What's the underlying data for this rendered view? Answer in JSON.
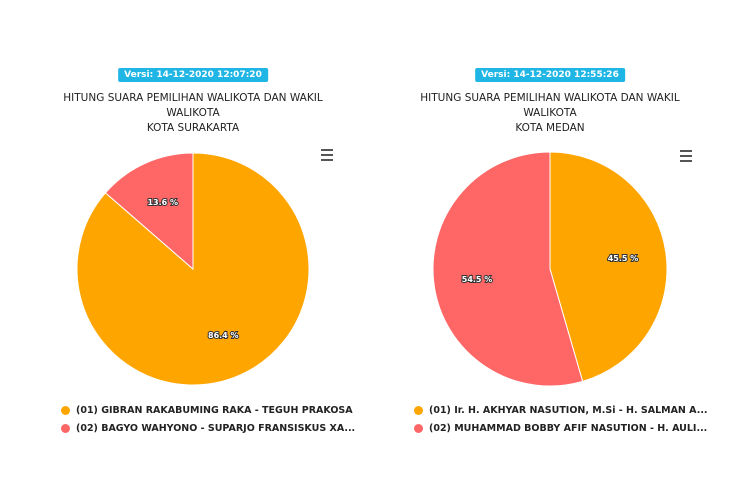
{
  "chart_data": [
    {
      "type": "pie",
      "badge": "Versi: 14-12-2020 12:07:20",
      "title": "HITUNG SUARA PEMILIHAN WALIKOTA DAN WAKIL WALIKOTA",
      "subtitle": "KOTA SURAKARTA",
      "categories": [
        "(01) GIBRAN RAKABUMING RAKA - TEGUH PRAKOSA",
        "(02) BAGYO WAHYONO - SUPARJO FRANSISKUS XA..."
      ],
      "values": [
        86.4,
        13.6
      ],
      "value_labels": [
        "86.4 %",
        "13.6 %"
      ],
      "colors": [
        "#ffa500",
        "#ff6666"
      ]
    },
    {
      "type": "pie",
      "badge": "Versi: 14-12-2020 12:55:26",
      "title": "HITUNG SUARA PEMILIHAN WALIKOTA DAN WAKIL WALIKOTA",
      "subtitle": "KOTA MEDAN",
      "categories": [
        "(01) Ir. H. AKHYAR NASUTION, M.Si - H. SALMAN A...",
        "(02) MUHAMMAD BOBBY AFIF NASUTION - H. AULI..."
      ],
      "values": [
        45.5,
        54.5
      ],
      "value_labels": [
        "45.5 %",
        "54.5 %"
      ],
      "colors": [
        "#ffa500",
        "#ff6666"
      ]
    }
  ]
}
